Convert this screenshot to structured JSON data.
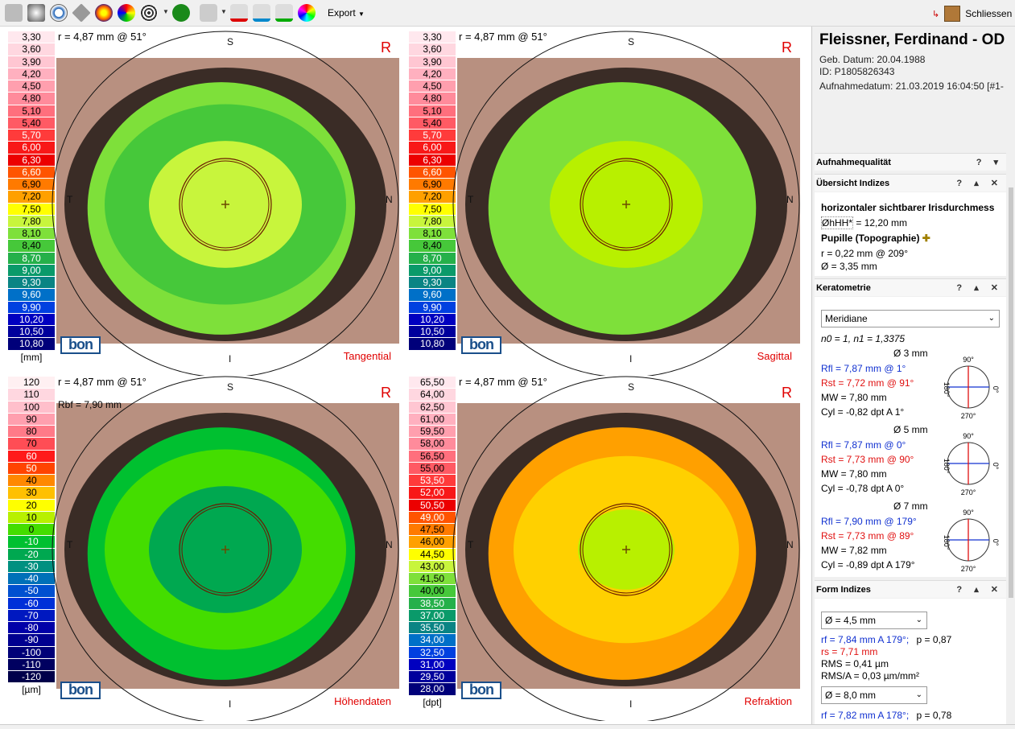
{
  "toolbar": {
    "export_label": "Export",
    "close_label": "Schliessen",
    "icons": [
      "grid-view-icon",
      "gray-map-icon",
      "ring-map-icon",
      "diamond-icon",
      "color-map-icon",
      "multi-map-icon",
      "placido-icon",
      "green-circle-icon",
      "eye-tool-1-icon",
      "eye-tool-2-icon",
      "eye-tool-3-icon",
      "eye-tool-4-icon",
      "color-wheel-icon"
    ]
  },
  "maps": [
    {
      "radius_label": "r = 4,87 mm @ 51°",
      "eye": "R",
      "name": "Tangential",
      "unit": "[mm]",
      "scale": [
        "3,30",
        "3,60",
        "3,90",
        "4,20",
        "4,50",
        "4,80",
        "5,10",
        "5,40",
        "5,70",
        "6,00",
        "6,30",
        "6,60",
        "6,90",
        "7,20",
        "7,50",
        "7,80",
        "8,10",
        "8,40",
        "8,70",
        "9,00",
        "9,30",
        "9,60",
        "9,90",
        "10,20",
        "10,50",
        "10,80"
      ],
      "directions": {
        "top": "S",
        "bottom": "I",
        "left": "T",
        "right": "N"
      }
    },
    {
      "radius_label": "r = 4,87 mm @ 51°",
      "eye": "R",
      "name": "Sagittal",
      "unit": "",
      "scale": [
        "3,30",
        "3,60",
        "3,90",
        "4,20",
        "4,50",
        "4,80",
        "5,10",
        "5,40",
        "5,70",
        "6,00",
        "6,30",
        "6,60",
        "6,90",
        "7,20",
        "7,50",
        "7,80",
        "8,10",
        "8,40",
        "8,70",
        "9,00",
        "9,30",
        "9,60",
        "9,90",
        "10,20",
        "10,50",
        "10,80"
      ],
      "directions": {
        "top": "S",
        "bottom": "I",
        "left": "T",
        "right": "N"
      }
    },
    {
      "radius_label": "r = 4,87 mm @ 51°",
      "rbf": "Rbf = 7,90 mm",
      "eye": "R",
      "name": "Höhendaten",
      "unit": "[µm]",
      "scale": [
        "120",
        "110",
        "100",
        "90",
        "80",
        "70",
        "60",
        "50",
        "40",
        "30",
        "20",
        "10",
        "0",
        "-10",
        "-20",
        "-30",
        "-40",
        "-50",
        "-60",
        "-70",
        "-80",
        "-90",
        "-100",
        "-110",
        "-120"
      ],
      "directions": {
        "top": "S",
        "bottom": "I",
        "left": "T",
        "right": "N"
      }
    },
    {
      "radius_label": "r = 4,87 mm @ 51°",
      "eye": "R",
      "name": "Refraktion",
      "unit": "[dpt]",
      "scale": [
        "65,50",
        "64,00",
        "62,50",
        "61,00",
        "59,50",
        "58,00",
        "56,50",
        "55,00",
        "53,50",
        "52,00",
        "50,50",
        "49,00",
        "47,50",
        "46,00",
        "44,50",
        "43,00",
        "41,50",
        "40,00",
        "38,50",
        "37,00",
        "35,50",
        "34,00",
        "32,50",
        "31,00",
        "29,50",
        "28,00"
      ],
      "directions": {
        "top": "S",
        "bottom": "I",
        "left": "T",
        "right": "N"
      }
    }
  ],
  "colors": {
    "scale_mm": [
      "#ffe8ee",
      "#ffd7e0",
      "#ffc6d2",
      "#ffb0bf",
      "#ff9fae",
      "#ff8b9b",
      "#ff6f7d",
      "#ff5a64",
      "#ff3b3b",
      "#f81818",
      "#ec0000",
      "#ff5400",
      "#ff7a00",
      "#ffa000",
      "#ffff00",
      "#c8f53c",
      "#7ee03a",
      "#46c83a",
      "#25b04a",
      "#0a9a6a",
      "#0a8484",
      "#0070c8",
      "#0040e0",
      "#0000c0",
      "#00009c",
      "#00007a"
    ],
    "scale_um": [
      "#fff0f2",
      "#ffd7e0",
      "#ffbfcb",
      "#ff9fae",
      "#ff7a88",
      "#ff4d55",
      "#ff1a1a",
      "#ff4400",
      "#ff8800",
      "#ffc000",
      "#ffff00",
      "#b8f000",
      "#44dd00",
      "#00c030",
      "#00a850",
      "#009080",
      "#0070b8",
      "#0050d0",
      "#0030d8",
      "#0018c0",
      "#0000a8",
      "#000090",
      "#000078",
      "#000060",
      "#00004a"
    ],
    "accent_red": "#e00000"
  },
  "patient": {
    "name": "Fleissner, Ferdinand - OD",
    "birth": "Geb. Datum: 20.04.1988",
    "id": "ID: P1805826343",
    "capture": "Aufnahmedatum: 21.03.2019 16:04:50 [#1-"
  },
  "panel": {
    "aufnahme_title": "Aufnahmequalität",
    "indizes_title": "Übersicht Indizes",
    "iris_heading": "horizontaler sichtbarer Irisdurchmess",
    "iris_value_key": "ØhHH*",
    "iris_value": " = 12,20 mm",
    "pupil_heading": "Pupille (Topographie)",
    "pupil_r": "r = 0,22 mm @ 209°",
    "pupil_d": "Ø = 3,35 mm",
    "kerato_title": "Keratometrie",
    "kerato_select": "Meridiane",
    "kerato_n": "n0 = 1, n1 = 1,3375",
    "kerato_groups": [
      {
        "dia": "Ø 3 mm",
        "rfl": "Rfl = 7,87 mm  @ 1°",
        "rst": "Rst = 7,72 mm  @ 91°",
        "mw": "MW = 7,80 mm",
        "cyl": "Cyl = -0,82 dpt A 1°"
      },
      {
        "dia": "Ø 5 mm",
        "rfl": "Rfl = 7,87 mm  @ 0°",
        "rst": "Rst = 7,73 mm  @ 90°",
        "mw": "MW = 7,80 mm",
        "cyl": "Cyl = -0,78 dpt A 0°"
      },
      {
        "dia": "Ø 7 mm",
        "rfl": "Rfl = 7,90 mm  @ 179°",
        "rst": "Rst = 7,73 mm  @ 89°",
        "mw": "MW = 7,82 mm",
        "cyl": "Cyl = -0,89 dpt A 179°"
      }
    ],
    "axis_labels": {
      "top": "90°",
      "bottom": "270°",
      "left": "180°",
      "right": "0°"
    },
    "form_title": "Form Indizes",
    "form_select1": "Ø = 4,5 mm",
    "form_rf": "rf = 7,84 mm A 179°;",
    "form_p": "p = 0,87",
    "form_rs": "rs = 7,71 mm",
    "form_rms": "RMS = 0,41 µm",
    "form_rmsa": "RMS/A = 0,03 µm/mm²",
    "form_select2": "Ø = 8,0 mm",
    "form_rf2": "rf = 7,82 mm A 178°;",
    "form_p2": "p = 0,78"
  }
}
